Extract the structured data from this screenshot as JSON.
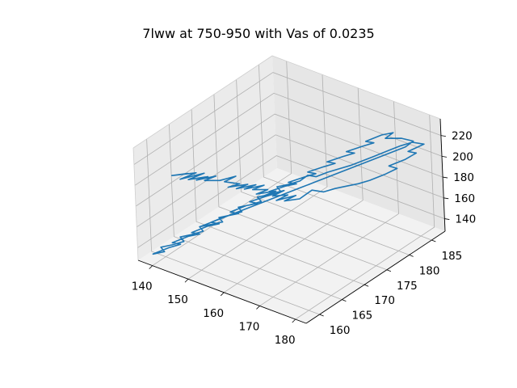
{
  "chart_data": {
    "type": "line3d",
    "title": "7lww at 750-950 with Vas of 0.0235",
    "xlabel": "",
    "ylabel": "",
    "zlabel": "",
    "xlim": [
      136,
      183
    ],
    "ylim": [
      157,
      188
    ],
    "zlim": [
      128,
      236
    ],
    "xticks": [
      140,
      150,
      160,
      170,
      180
    ],
    "yticks": [
      160,
      165,
      170,
      175,
      180,
      185
    ],
    "zticks": [
      140,
      160,
      180,
      200,
      220
    ],
    "grid": true,
    "series_color": "#1f77b4",
    "series": [
      {
        "points": [
          [
            143,
            160,
            210
          ],
          [
            146,
            161,
            213
          ],
          [
            144,
            159,
            214
          ],
          [
            147,
            162,
            212
          ],
          [
            145,
            160,
            209
          ],
          [
            148,
            163,
            210
          ],
          [
            146,
            161,
            207
          ],
          [
            149,
            163,
            208
          ],
          [
            147,
            162,
            205
          ],
          [
            150,
            164,
            207
          ],
          [
            148,
            163,
            203
          ],
          [
            151,
            164,
            204
          ],
          [
            153,
            166,
            205
          ],
          [
            151,
            165,
            200
          ],
          [
            154,
            166,
            199
          ],
          [
            152,
            165,
            196
          ],
          [
            155,
            167,
            197
          ],
          [
            153,
            166,
            193
          ],
          [
            156,
            168,
            195
          ],
          [
            154,
            167,
            191
          ],
          [
            157,
            169,
            193
          ],
          [
            155,
            168,
            189
          ],
          [
            158,
            169,
            190
          ],
          [
            156,
            168,
            186
          ],
          [
            159,
            170,
            187
          ],
          [
            157,
            169,
            183
          ],
          [
            160,
            171,
            186
          ],
          [
            158,
            170,
            181
          ],
          [
            161,
            171,
            183
          ],
          [
            159,
            170,
            178
          ],
          [
            162,
            172,
            181
          ],
          [
            160,
            171,
            176
          ],
          [
            163,
            172,
            179
          ],
          [
            164,
            174,
            183
          ],
          [
            166,
            175,
            181
          ],
          [
            168,
            176,
            184
          ],
          [
            170,
            177,
            186
          ],
          [
            172,
            178,
            188
          ],
          [
            174,
            179,
            191
          ],
          [
            176,
            181,
            194
          ],
          [
            178,
            182,
            199
          ],
          [
            177,
            181,
            203
          ],
          [
            179,
            183,
            206
          ],
          [
            181,
            184,
            212
          ],
          [
            180,
            183,
            215
          ],
          [
            182,
            185,
            219
          ],
          [
            180,
            184,
            221
          ],
          [
            178,
            183,
            218
          ],
          [
            176,
            182,
            214
          ],
          [
            174,
            180,
            211
          ],
          [
            172,
            179,
            207
          ],
          [
            170,
            178,
            203
          ],
          [
            168,
            177,
            200
          ],
          [
            166,
            176,
            197
          ],
          [
            164,
            175,
            193
          ],
          [
            163,
            174,
            196
          ],
          [
            162,
            173,
            192
          ],
          [
            160,
            172,
            189
          ],
          [
            158,
            171,
            187
          ],
          [
            159,
            171,
            184
          ],
          [
            157,
            170,
            181
          ],
          [
            155,
            169,
            179
          ],
          [
            156,
            169,
            176
          ],
          [
            154,
            168,
            173
          ],
          [
            152,
            167,
            171
          ],
          [
            153,
            167,
            168
          ],
          [
            151,
            166,
            165
          ],
          [
            149,
            165,
            163
          ],
          [
            150,
            165,
            160
          ],
          [
            148,
            164,
            158
          ],
          [
            146,
            163,
            156
          ],
          [
            147,
            163,
            153
          ],
          [
            145,
            162,
            150
          ],
          [
            143,
            161,
            148
          ],
          [
            144,
            161,
            145
          ],
          [
            142,
            160,
            142
          ],
          [
            140,
            159,
            140
          ],
          [
            141,
            159,
            137
          ],
          [
            139,
            158,
            135
          ],
          [
            141,
            160,
            138
          ],
          [
            143,
            161,
            141
          ],
          [
            142,
            160,
            144
          ],
          [
            144,
            162,
            147
          ],
          [
            146,
            163,
            149
          ],
          [
            145,
            162,
            152
          ],
          [
            147,
            164,
            155
          ],
          [
            149,
            165,
            157
          ],
          [
            148,
            164,
            160
          ],
          [
            150,
            166,
            163
          ],
          [
            152,
            167,
            165
          ],
          [
            151,
            166,
            168
          ],
          [
            153,
            168,
            171
          ],
          [
            155,
            169,
            173
          ],
          [
            154,
            168,
            176
          ],
          [
            156,
            170,
            178
          ],
          [
            158,
            171,
            181
          ],
          [
            157,
            170,
            184
          ],
          [
            159,
            172,
            186
          ],
          [
            161,
            173,
            188
          ],
          [
            160,
            172,
            191
          ],
          [
            162,
            174,
            193
          ],
          [
            164,
            175,
            196
          ],
          [
            163,
            174,
            199
          ],
          [
            165,
            176,
            201
          ],
          [
            167,
            177,
            204
          ],
          [
            166,
            176,
            207
          ],
          [
            168,
            178,
            209
          ],
          [
            170,
            179,
            212
          ],
          [
            169,
            178,
            215
          ],
          [
            171,
            180,
            217
          ],
          [
            173,
            181,
            220
          ],
          [
            172,
            180,
            223
          ],
          [
            174,
            182,
            226
          ],
          [
            176,
            183,
            228
          ],
          [
            175,
            182,
            224
          ],
          [
            177,
            184,
            221
          ],
          [
            179,
            185,
            218
          ],
          [
            178,
            184,
            214
          ],
          [
            176,
            183,
            210
          ],
          [
            174,
            182,
            206
          ],
          [
            172,
            181,
            202
          ],
          [
            170,
            180,
            198
          ],
          [
            168,
            179,
            194
          ],
          [
            166,
            178,
            190
          ],
          [
            164,
            177,
            186
          ],
          [
            162,
            176,
            182
          ],
          [
            160,
            175,
            178
          ],
          [
            158,
            174,
            174
          ],
          [
            156,
            173,
            170
          ],
          [
            154,
            172,
            166
          ],
          [
            152,
            171,
            162
          ],
          [
            150,
            170,
            158
          ],
          [
            148,
            169,
            154
          ],
          [
            146,
            168,
            150
          ],
          [
            144,
            167,
            146
          ],
          [
            142,
            166,
            142
          ]
        ]
      }
    ]
  }
}
